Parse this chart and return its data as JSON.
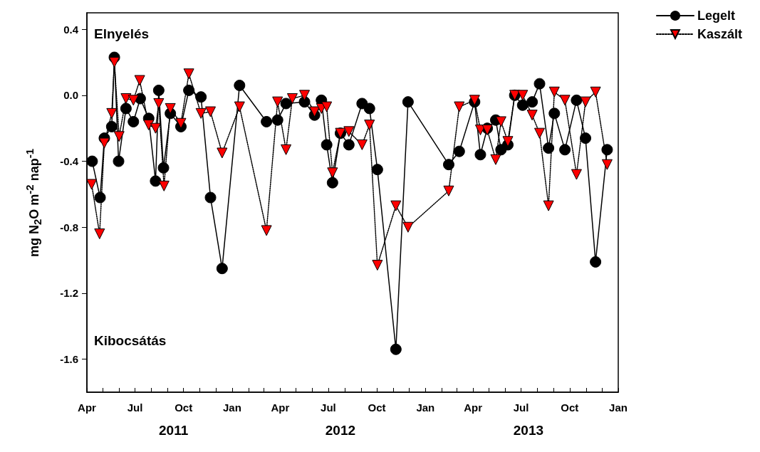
{
  "chart_data": {
    "type": "line",
    "ylabel": "mg N$_{2}$O m$^{-2}$ nap$^{-1}$",
    "annotations": [
      "Elnyelés",
      "Kibocsátás"
    ],
    "xlim": [
      "2011-04-01",
      "2014-01-01"
    ],
    "xticks": [
      {
        "value": "2011-04-01",
        "label": "Apr"
      },
      {
        "value": "2011-05-01",
        "label": null
      },
      {
        "value": "2011-06-01",
        "label": null
      },
      {
        "value": "2011-07-01",
        "label": "Jul"
      },
      {
        "value": "2011-08-01",
        "label": null
      },
      {
        "value": "2011-09-01",
        "label": null
      },
      {
        "value": "2011-10-01",
        "label": "Oct"
      },
      {
        "value": "2011-11-01",
        "label": null
      },
      {
        "value": "2011-12-01",
        "label": null
      },
      {
        "value": "2012-01-01",
        "label": "Jan"
      },
      {
        "value": "2012-02-01",
        "label": null
      },
      {
        "value": "2012-03-01",
        "label": null
      },
      {
        "value": "2012-04-01",
        "label": "Apr"
      },
      {
        "value": "2012-05-01",
        "label": null
      },
      {
        "value": "2012-06-01",
        "label": null
      },
      {
        "value": "2012-07-01",
        "label": "Jul"
      },
      {
        "value": "2012-08-01",
        "label": null
      },
      {
        "value": "2012-09-01",
        "label": null
      },
      {
        "value": "2012-10-01",
        "label": "Oct"
      },
      {
        "value": "2012-11-01",
        "label": null
      },
      {
        "value": "2012-12-01",
        "label": null
      },
      {
        "value": "2013-01-01",
        "label": "Jan"
      },
      {
        "value": "2013-02-01",
        "label": null
      },
      {
        "value": "2013-03-01",
        "label": null
      },
      {
        "value": "2013-04-01",
        "label": "Apr"
      },
      {
        "value": "2013-05-01",
        "label": null
      },
      {
        "value": "2013-06-01",
        "label": null
      },
      {
        "value": "2013-07-01",
        "label": "Jul"
      },
      {
        "value": "2013-08-01",
        "label": null
      },
      {
        "value": "2013-09-01",
        "label": null
      },
      {
        "value": "2013-10-01",
        "label": "Oct"
      },
      {
        "value": "2013-11-01",
        "label": null
      },
      {
        "value": "2013-12-01",
        "label": null
      },
      {
        "value": "2014-01-01",
        "label": "Jan"
      }
    ],
    "x2lim": [
      "2011-04-01",
      "2014-01-01"
    ],
    "x2ticks": [
      {
        "value": "2011-09-12",
        "label": "2011"
      },
      {
        "value": "2012-07-24",
        "label": "2012"
      },
      {
        "value": "2013-07-15",
        "label": "2013"
      }
    ],
    "ylim": [
      -1.8,
      0.5
    ],
    "yticks": [
      0.4,
      {
        "value": 0,
        "label": "0.0"
      },
      -0.4,
      -0.8,
      -1.2,
      -1.6
    ],
    "grid": false,
    "legend": "top right",
    "series": [
      {
        "name": "Legelt",
        "color": "#000000",
        "marker": "circle",
        "line_style": "solid",
        "x": [
          "2011-04-11",
          "2011-04-26",
          "2011-05-04",
          "2011-05-18",
          "2011-05-23",
          "2011-05-31",
          "2011-06-14",
          "2011-06-28",
          "2011-07-11",
          "2011-07-27",
          "2011-08-09",
          "2011-08-15",
          "2011-08-24",
          "2011-09-06",
          "2011-09-26",
          "2011-10-11",
          "2011-11-03",
          "2011-11-21",
          "2011-12-13",
          "2012-01-15",
          "2012-03-06",
          "2012-03-27",
          "2012-04-12",
          "2012-05-17",
          "2012-06-05",
          "2012-06-18",
          "2012-06-28",
          "2012-07-09",
          "2012-07-24",
          "2012-08-09",
          "2012-09-03",
          "2012-09-17",
          "2012-10-02",
          "2012-11-06",
          "2012-11-29",
          "2013-02-14",
          "2013-03-06",
          "2013-04-04",
          "2013-04-15",
          "2013-04-28",
          "2013-05-14",
          "2013-05-24",
          "2013-06-06",
          "2013-06-19",
          "2013-07-04",
          "2013-07-22",
          "2013-08-05",
          "2013-08-22",
          "2013-09-02",
          "2013-09-22",
          "2013-10-14",
          "2013-10-31",
          "2013-11-19",
          "2013-12-11"
        ],
        "values": [
          -0.4,
          -0.62,
          -0.26,
          -0.19,
          0.23,
          -0.4,
          -0.08,
          -0.16,
          -0.02,
          -0.14,
          -0.52,
          0.03,
          -0.44,
          -0.11,
          -0.19,
          0.03,
          -0.01,
          -0.62,
          -1.05,
          0.06,
          -0.16,
          -0.15,
          -0.05,
          -0.04,
          -0.12,
          -0.03,
          -0.3,
          -0.53,
          -0.23,
          -0.3,
          -0.05,
          -0.08,
          -0.45,
          -1.54,
          -0.04,
          -0.42,
          -0.34,
          -0.04,
          -0.36,
          -0.2,
          -0.15,
          -0.33,
          -0.3,
          0.0,
          -0.06,
          -0.04,
          0.07,
          -0.32,
          -0.11,
          -0.33,
          -0.03,
          -0.26,
          -1.01,
          -0.33
        ]
      },
      {
        "name": "Kaszált",
        "color": "#ff0000",
        "marker": "triangle",
        "line_style": "dotted",
        "x": [
          "2011-04-10",
          "2011-04-25",
          "2011-05-04",
          "2011-05-18",
          "2011-05-23",
          "2011-06-01",
          "2011-06-14",
          "2011-06-28",
          "2011-07-10",
          "2011-07-27",
          "2011-08-09",
          "2011-08-15",
          "2011-08-25",
          "2011-09-06",
          "2011-09-26",
          "2011-10-11",
          "2011-11-03",
          "2011-11-21",
          "2011-12-13",
          "2012-01-15",
          "2012-03-06",
          "2012-03-27",
          "2012-04-12",
          "2012-04-24",
          "2012-05-17",
          "2012-06-05",
          "2012-06-18",
          "2012-06-28",
          "2012-07-09",
          "2012-07-24",
          "2012-08-09",
          "2012-09-03",
          "2012-09-17",
          "2012-10-02",
          "2012-11-06",
          "2012-11-29",
          "2013-02-14",
          "2013-03-06",
          "2013-04-04",
          "2013-04-15",
          "2013-04-28",
          "2013-05-14",
          "2013-05-24",
          "2013-06-06",
          "2013-06-19",
          "2013-07-04",
          "2013-07-22",
          "2013-08-05",
          "2013-08-22",
          "2013-09-02",
          "2013-09-22",
          "2013-10-14",
          "2013-10-31",
          "2013-11-19",
          "2013-12-11"
        ],
        "values": [
          -0.54,
          -0.84,
          -0.29,
          -0.11,
          0.2,
          -0.25,
          -0.02,
          -0.03,
          0.09,
          -0.18,
          -0.2,
          -0.05,
          -0.55,
          -0.08,
          -0.17,
          0.13,
          -0.11,
          -0.1,
          -0.35,
          -0.07,
          -0.82,
          -0.04,
          -0.33,
          -0.02,
          0.0,
          -0.1,
          -0.08,
          -0.07,
          -0.47,
          -0.23,
          -0.22,
          -0.3,
          -0.18,
          -1.03,
          -0.67,
          -0.8,
          -0.58,
          -0.07,
          -0.03,
          -0.21,
          -0.21,
          -0.39,
          -0.16,
          -0.28,
          0.0,
          0.0,
          -0.12,
          -0.23,
          -0.67,
          0.02,
          -0.03,
          -0.48,
          -0.04,
          0.02,
          -0.42
        ]
      }
    ]
  }
}
